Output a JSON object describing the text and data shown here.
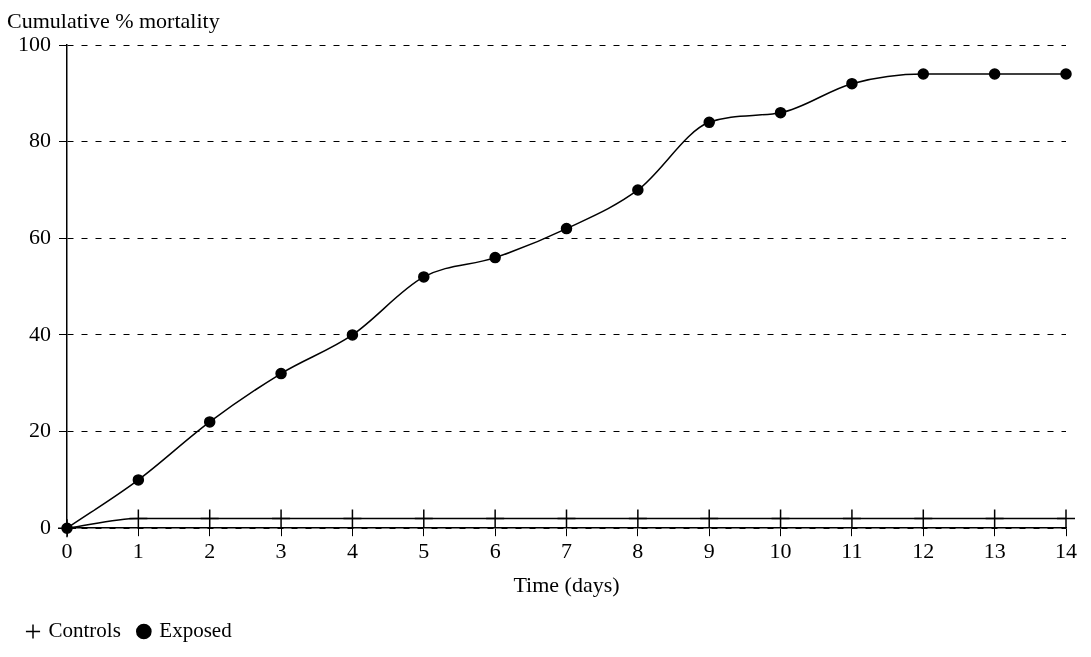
{
  "chart_data": {
    "type": "line",
    "ylabel": "Cumulative % mortality",
    "xlabel": "Time (days)",
    "x": [
      0,
      1,
      2,
      3,
      4,
      5,
      6,
      7,
      8,
      9,
      10,
      11,
      12,
      13,
      14
    ],
    "series": [
      {
        "name": "Exposed",
        "color": "#000000",
        "marker": "circle",
        "values": [
          0,
          10,
          22,
          32,
          40,
          52,
          56,
          62,
          70,
          84,
          86,
          92,
          94,
          94,
          94
        ]
      },
      {
        "name": "Controls",
        "color": "#000000",
        "marker": "cross",
        "values": [
          0,
          2,
          2,
          2,
          2,
          2,
          2,
          2,
          2,
          2,
          2,
          2,
          2,
          2,
          2
        ]
      }
    ],
    "xlim": [
      0,
      14
    ],
    "xticks": [
      0,
      1,
      2,
      3,
      4,
      5,
      6,
      7,
      8,
      9,
      10,
      11,
      12,
      13,
      14
    ],
    "ylim": [
      0,
      100
    ],
    "yticks": [
      0,
      20,
      40,
      60,
      80,
      100
    ],
    "grid": "y",
    "line_style": "solid",
    "legend": "bottom left"
  }
}
